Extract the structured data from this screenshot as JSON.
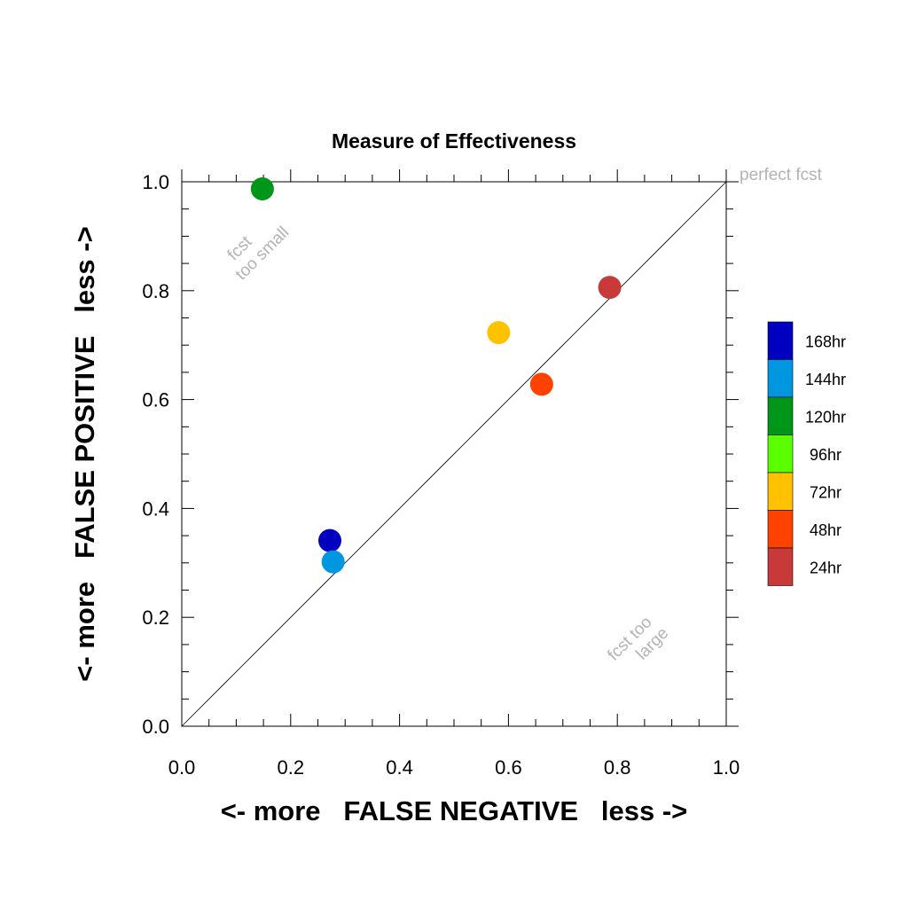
{
  "chart_data": {
    "type": "scatter",
    "title": "Measure of Effectiveness",
    "xlabel": "<- more   FALSE NEGATIVE   less ->",
    "ylabel": "<- more   FALSE POSITIVE   less ->",
    "xlim": [
      0.0,
      1.0
    ],
    "ylim": [
      0.0,
      1.0
    ],
    "xticks": [
      "0.0",
      "0.2",
      "0.4",
      "0.6",
      "0.8",
      "1.0"
    ],
    "yticks": [
      "0.0",
      "0.2",
      "0.4",
      "0.6",
      "0.8",
      "1.0"
    ],
    "grid": false,
    "reference_line": {
      "from": [
        0,
        0
      ],
      "to": [
        1,
        1
      ]
    },
    "annotations": {
      "perfect": "perfect fcst",
      "too_small_1": "fcst",
      "too_small_2": "too small",
      "too_large_1": "fcst too",
      "too_large_2": "large"
    },
    "legend_position": "right",
    "series": [
      {
        "name": "168hr",
        "color": "#0000c0",
        "x": 0.272,
        "y": 0.341
      },
      {
        "name": "144hr",
        "color": "#0096e0",
        "x": 0.278,
        "y": 0.302
      },
      {
        "name": "120hr",
        "color": "#009619",
        "x": 0.148,
        "y": 0.987
      },
      {
        "name": "96hr",
        "color": "#5aff00",
        "x": null,
        "y": null
      },
      {
        "name": "72hr",
        "color": "#ffc200",
        "x": 0.582,
        "y": 0.723
      },
      {
        "name": "48hr",
        "color": "#ff4200",
        "x": 0.661,
        "y": 0.628
      },
      {
        "name": "24hr",
        "color": "#c83a3a",
        "x": 0.786,
        "y": 0.806
      }
    ]
  }
}
